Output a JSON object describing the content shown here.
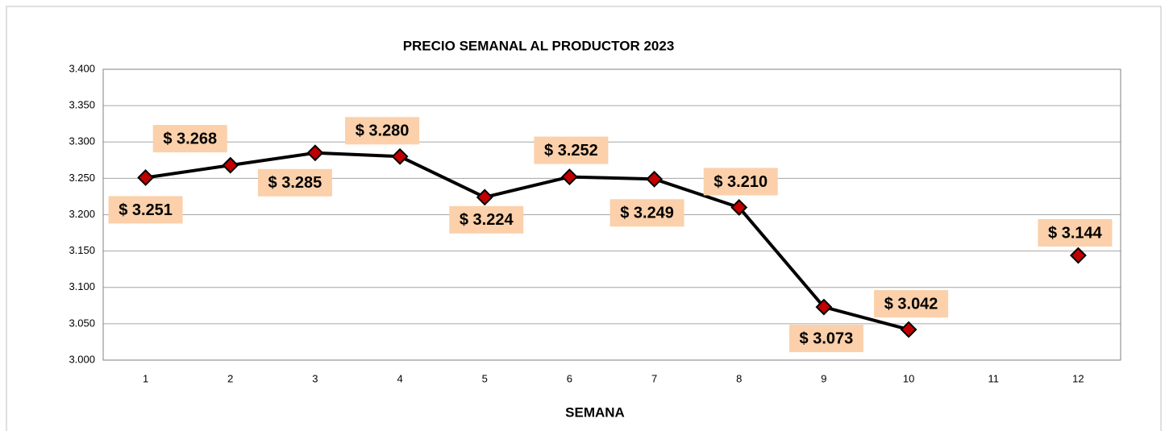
{
  "chart_data": {
    "type": "line",
    "title": "PRECIO SEMANAL AL PRODUCTOR 2023",
    "x_label": "SEMANA",
    "categories": [
      "1",
      "2",
      "3",
      "4",
      "5",
      "6",
      "7",
      "8",
      "9",
      "10",
      "11",
      "12"
    ],
    "series": [
      {
        "color": "#000000",
        "marker_color": "#c00000",
        "values": [
          3251,
          3268,
          3285,
          3280,
          3224,
          3252,
          3249,
          3210,
          3073,
          3042,
          null,
          3144
        ],
        "value_labels": [
          "$ 3.251",
          "$ 3.268",
          "$ 3.285",
          "$ 3.280",
          "$ 3.224",
          "$ 3.252",
          "$ 3.249",
          "$ 3.210",
          "$ 3.073",
          "$ 3.042",
          null,
          "$ 3.144"
        ]
      }
    ],
    "ylim": [
      3000,
      3400
    ],
    "yticks": [
      {
        "value": 3000,
        "label": "3.000"
      },
      {
        "value": 3050,
        "label": "3.050"
      },
      {
        "value": 3100,
        "label": "3.100"
      },
      {
        "value": 3150,
        "label": "3.150"
      },
      {
        "value": 3200,
        "label": "3.200"
      },
      {
        "value": 3250,
        "label": "3.250"
      },
      {
        "value": 3300,
        "label": "3.300"
      },
      {
        "value": 3350,
        "label": "3.350"
      },
      {
        "value": 3400,
        "label": "3.400"
      }
    ],
    "grid": true,
    "label_background": "#fbd0aa"
  }
}
